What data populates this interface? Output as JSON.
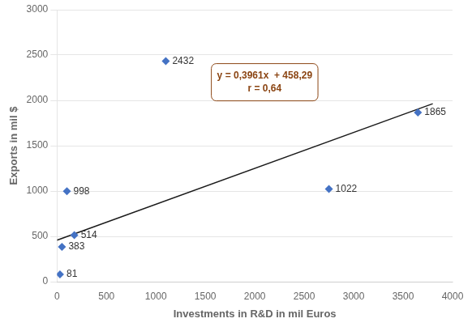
{
  "chart_data": {
    "type": "scatter",
    "xlabel": "Investments in R&D in mil Euros",
    "ylabel": "Exports in mil $",
    "series": [
      {
        "type": "scatter",
        "color": "#4472C4",
        "marker": "diamond",
        "data_labels": true,
        "x": [
          30,
          50,
          100,
          175,
          1100,
          2750,
          3650
        ],
        "values": [
          81,
          383,
          998,
          514,
          2432,
          1022,
          1865
        ]
      },
      {
        "type": "line",
        "color": "#1a1a1a",
        "line_style": "solid",
        "x": [
          0,
          3800
        ],
        "values": [
          458.29,
          1963.47
        ]
      }
    ],
    "annotations": [
      {
        "text": "y = 0,3961x  + 458,29\nr = 0,64",
        "x": 2100,
        "y": 2200,
        "color": "#8B4513"
      }
    ],
    "xlim": [
      0,
      4000
    ],
    "ylim": [
      0,
      3000
    ],
    "xticks": [
      0,
      500,
      1000,
      1500,
      2000,
      2500,
      3000,
      3500,
      4000
    ],
    "yticks": [
      0,
      500,
      1000,
      1500,
      2000,
      2500,
      3000
    ],
    "grid": "y"
  }
}
